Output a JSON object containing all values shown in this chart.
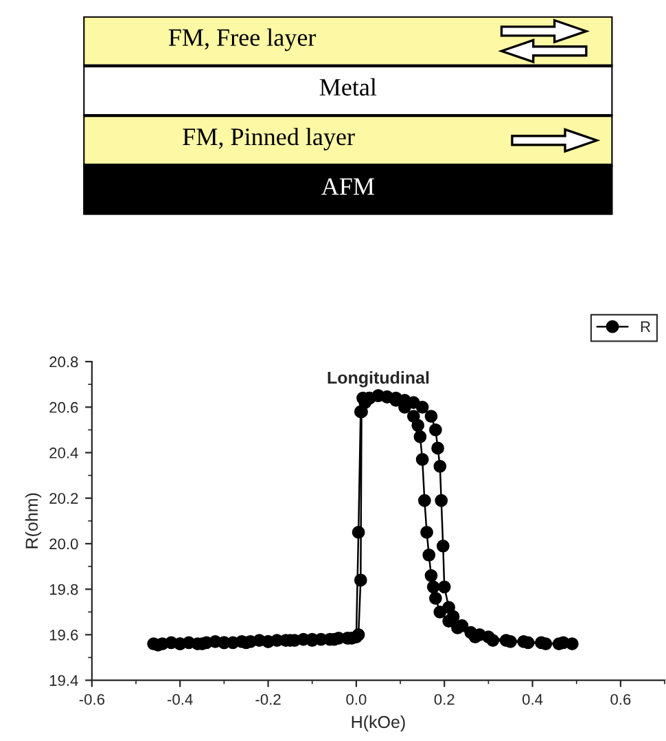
{
  "chart_data": [
    {
      "type": "other",
      "annotations": [
        "FM, Free layer",
        "Metal",
        "FM, Pinned layer",
        "AFM"
      ],
      "colors": [
        "#fcf8a4",
        "#ffffff",
        "#fcf8a4",
        "#000000"
      ]
    },
    {
      "type": "line",
      "title": "Longitudinal",
      "xlabel": "H(kOe)",
      "ylabel": "R(ohm)",
      "xlim": [
        -0.6,
        0.7
      ],
      "ylim": [
        19.4,
        20.8
      ],
      "xticks": [
        -0.6,
        -0.4,
        -0.2,
        {
          "value": 0,
          "label": "0.0"
        },
        0.2,
        0.4,
        0.6
      ],
      "yticks": [
        19.4,
        19.6,
        19.8,
        {
          "value": 20,
          "label": "20.0"
        },
        20.2,
        20.4,
        20.6,
        20.8
      ],
      "grid": false,
      "legend": "top right",
      "marker": "circle",
      "line_style": "solid",
      "series": [
        {
          "name": "R",
          "color": "#000000",
          "x": [
            -0.46,
            -0.44,
            -0.42,
            -0.4,
            -0.38,
            -0.36,
            -0.34,
            -0.32,
            -0.3,
            -0.28,
            -0.26,
            -0.24,
            -0.22,
            -0.2,
            -0.18,
            -0.16,
            -0.14,
            -0.12,
            -0.1,
            -0.08,
            -0.06,
            -0.04,
            -0.02,
            0.0,
            0.005,
            0.01,
            0.015,
            0.03,
            0.05,
            0.07,
            0.09,
            0.11,
            0.13,
            0.15,
            0.17,
            0.18,
            0.185,
            0.19,
            0.193,
            0.197,
            0.2,
            0.21,
            0.22,
            0.24,
            0.26,
            0.28,
            0.3,
            0.34,
            0.38,
            0.42,
            0.46,
            0.49,
            0.47,
            0.43,
            0.39,
            0.35,
            0.31,
            0.27,
            0.23,
            0.21,
            0.19,
            0.18,
            0.175,
            0.17,
            0.165,
            0.16,
            0.155,
            0.15,
            0.145,
            0.14,
            0.13,
            0.11,
            0.09,
            0.07,
            0.05,
            0.03,
            0.02,
            0.012,
            0.01,
            0.005,
            -0.01,
            -0.05,
            -0.1,
            -0.15,
            -0.2,
            -0.25,
            -0.3,
            -0.35,
            -0.4,
            -0.45
          ],
          "values": [
            19.56,
            19.56,
            19.565,
            19.56,
            19.565,
            19.56,
            19.565,
            19.57,
            19.565,
            19.565,
            19.57,
            19.57,
            19.575,
            19.57,
            19.575,
            19.575,
            19.575,
            19.58,
            19.58,
            19.58,
            19.58,
            19.585,
            19.585,
            19.59,
            20.05,
            20.58,
            20.64,
            20.64,
            20.65,
            20.645,
            20.64,
            20.63,
            20.62,
            20.6,
            20.56,
            20.5,
            20.42,
            20.34,
            20.19,
            19.99,
            19.81,
            19.72,
            19.68,
            19.64,
            19.61,
            19.6,
            19.59,
            19.575,
            19.57,
            19.565,
            19.56,
            19.56,
            19.565,
            19.56,
            19.565,
            19.57,
            19.575,
            19.59,
            19.63,
            19.66,
            19.7,
            19.76,
            19.81,
            19.86,
            19.95,
            20.05,
            20.19,
            20.37,
            20.47,
            20.52,
            20.56,
            20.6,
            20.63,
            20.645,
            20.65,
            20.64,
            20.62,
            20.58,
            19.84,
            19.6,
            19.585,
            19.58,
            19.575,
            19.575,
            19.57,
            19.565,
            19.565,
            19.56,
            19.56,
            19.555
          ]
        }
      ]
    }
  ]
}
